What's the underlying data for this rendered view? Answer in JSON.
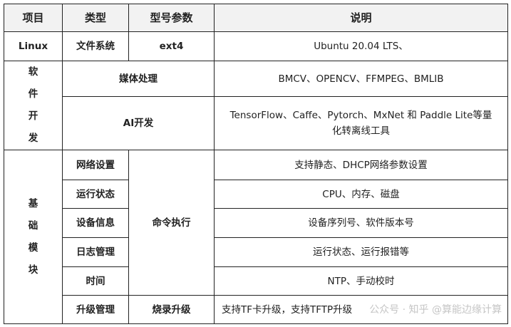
{
  "headers": [
    "项目",
    "类型",
    "型号参数",
    "说明"
  ],
  "linux": {
    "item": "Linux",
    "type": "文件系统",
    "param": "ext4",
    "desc": "Ubuntu 20.04 LTS、"
  },
  "software": {
    "item": "软件开发",
    "media": {
      "type": "媒体处理",
      "desc": "BMCV、OPENCV、FFMPEG、BMLIB"
    },
    "ai": {
      "type": "AI开发",
      "desc": "TensorFlow、Caffe、Pytorch、MxNet 和 Paddle Lite等量化转离线工具"
    }
  },
  "basic": {
    "item": "基础模块",
    "command": "命令执行",
    "rows": [
      {
        "type": "网络设置",
        "desc": "支持静态、DHCP网络参数设置"
      },
      {
        "type": "运行状态",
        "desc": "CPU、内存、磁盘"
      },
      {
        "type": "设备信息",
        "desc": "设备序列号、软件版本号"
      },
      {
        "type": "日志管理",
        "desc": "运行状态、运行报错等"
      },
      {
        "type": "时间",
        "desc": "NTP、手动校时"
      }
    ],
    "upgrade": {
      "type": "升级管理",
      "param": "烧录升级",
      "desc": "支持TF卡升级，支持TFTP升级"
    }
  },
  "watermark": "公众号 · 知乎 @算能边缘计算"
}
